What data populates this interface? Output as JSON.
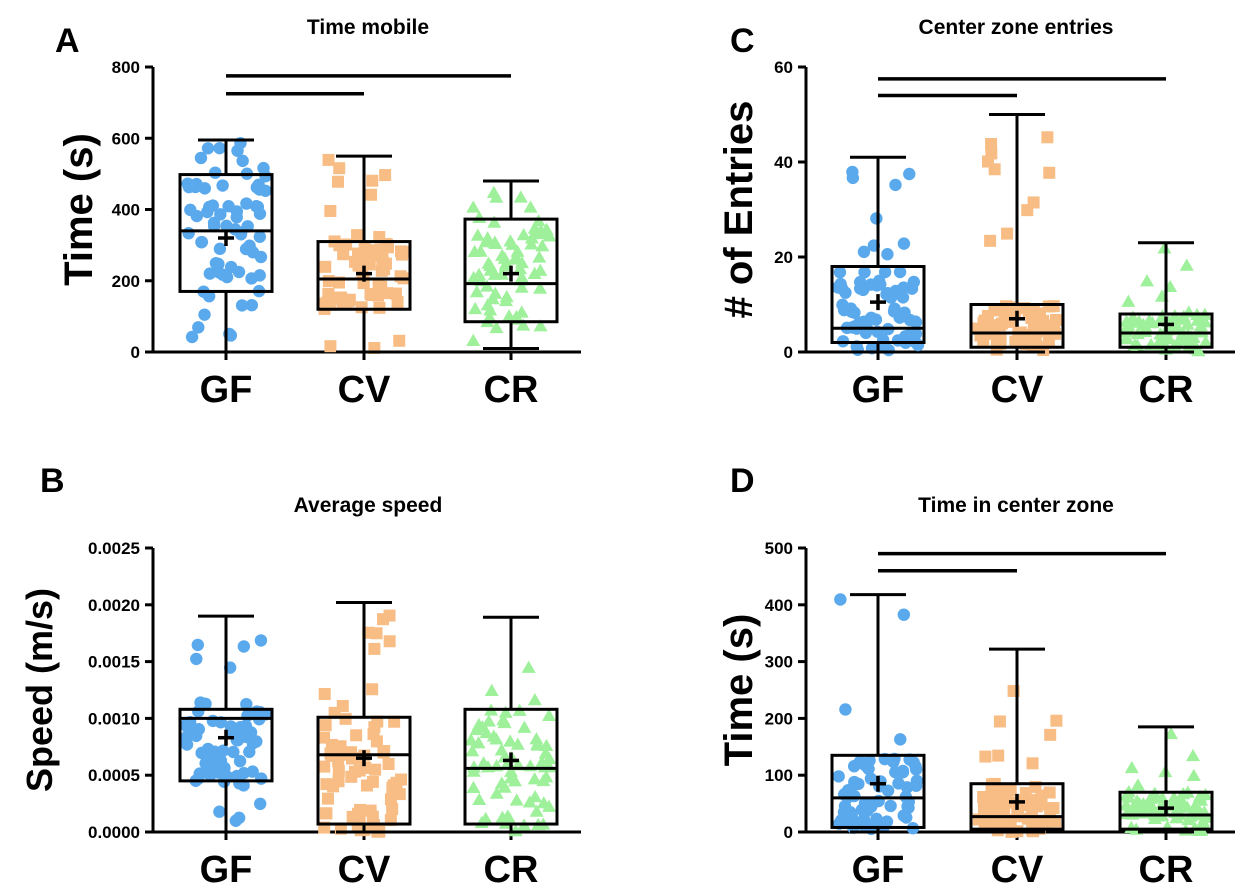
{
  "chart_data": [
    {
      "type": "box",
      "panel": "A",
      "title": "Time mobile",
      "ylabel": "Time (s)",
      "ylim": [
        0,
        800
      ],
      "yticks": [
        "0",
        "200",
        "400",
        "600",
        "800"
      ],
      "categories": [
        "GF",
        "CV",
        "CR"
      ],
      "colors": [
        "#5aa9ec",
        "#f7bd85",
        "#9ef09b"
      ],
      "markers": [
        "circle",
        "square",
        "triangle"
      ],
      "boxes": [
        {
          "min": 0,
          "q1": 170,
          "median": 340,
          "q3": 498,
          "max": 595,
          "mean": 320
        },
        {
          "min": 0,
          "q1": 120,
          "median": 205,
          "q3": 310,
          "max": 550,
          "mean": 220
        },
        {
          "min": 10,
          "q1": 85,
          "median": 192,
          "q3": 373,
          "max": 480,
          "mean": 220
        }
      ],
      "brackets": [
        {
          "from": "GF",
          "to": "CV",
          "level": 725
        },
        {
          "from": "GF",
          "to": "CR",
          "level": 775
        }
      ]
    },
    {
      "type": "box",
      "panel": "B",
      "title": "Average speed",
      "ylabel": "Speed (m/s)",
      "ylim": [
        0,
        0.0025
      ],
      "yticks": [
        "0.0000",
        "0.0005",
        "0.0010",
        "0.0015",
        "0.0020",
        "0.0025"
      ],
      "categories": [
        "GF",
        "CV",
        "CR"
      ],
      "colors": [
        "#5aa9ec",
        "#f7bd85",
        "#9ef09b"
      ],
      "markers": [
        "circle",
        "square",
        "triangle"
      ],
      "boxes": [
        {
          "min": 0.0,
          "q1": 0.00045,
          "median": 0.001,
          "q3": 0.00108,
          "max": 0.0019,
          "mean": 0.00083
        },
        {
          "min": 0.0,
          "q1": 7e-05,
          "median": 0.00068,
          "q3": 0.00101,
          "max": 0.00202,
          "mean": 0.00065
        },
        {
          "min": 0.0,
          "q1": 7e-05,
          "median": 0.00056,
          "q3": 0.00108,
          "max": 0.00189,
          "mean": 0.00063
        }
      ],
      "brackets": []
    },
    {
      "type": "box",
      "panel": "C",
      "title": "Center zone entries",
      "ylabel": "# of Entries",
      "ylim": [
        0,
        60
      ],
      "yticks": [
        "0",
        "20",
        "40",
        "60"
      ],
      "categories": [
        "GF",
        "CV",
        "CR"
      ],
      "colors": [
        "#5aa9ec",
        "#f7bd85",
        "#9ef09b"
      ],
      "markers": [
        "circle",
        "square",
        "triangle"
      ],
      "boxes": [
        {
          "min": 0,
          "q1": 2,
          "median": 5,
          "q3": 18,
          "max": 41,
          "mean": 10.5
        },
        {
          "min": 0,
          "q1": 1,
          "median": 4,
          "q3": 10,
          "max": 50,
          "mean": 7
        },
        {
          "min": 0,
          "q1": 1,
          "median": 4,
          "q3": 8,
          "max": 23,
          "mean": 5.8
        }
      ],
      "brackets": [
        {
          "from": "GF",
          "to": "CV",
          "level": 54
        },
        {
          "from": "GF",
          "to": "CR",
          "level": 57.5
        }
      ]
    },
    {
      "type": "box",
      "panel": "D",
      "title": "Time in center zone",
      "ylabel": "Time (s)",
      "ylim": [
        0,
        500
      ],
      "yticks": [
        "0",
        "100",
        "200",
        "300",
        "400",
        "500"
      ],
      "categories": [
        "GF",
        "CV",
        "CR"
      ],
      "colors": [
        "#5aa9ec",
        "#f7bd85",
        "#9ef09b"
      ],
      "markers": [
        "circle",
        "square",
        "triangle"
      ],
      "boxes": [
        {
          "min": 0,
          "q1": 8,
          "median": 60,
          "q3": 135,
          "max": 418,
          "mean": 85
        },
        {
          "min": 0,
          "q1": 5,
          "median": 27,
          "q3": 85,
          "max": 322,
          "mean": 53
        },
        {
          "min": 0,
          "q1": 5,
          "median": 30,
          "q3": 70,
          "max": 185,
          "mean": 42
        }
      ],
      "brackets": [
        {
          "from": "GF",
          "to": "CV",
          "level": 460
        },
        {
          "from": "GF",
          "to": "CR",
          "level": 490
        }
      ]
    }
  ]
}
